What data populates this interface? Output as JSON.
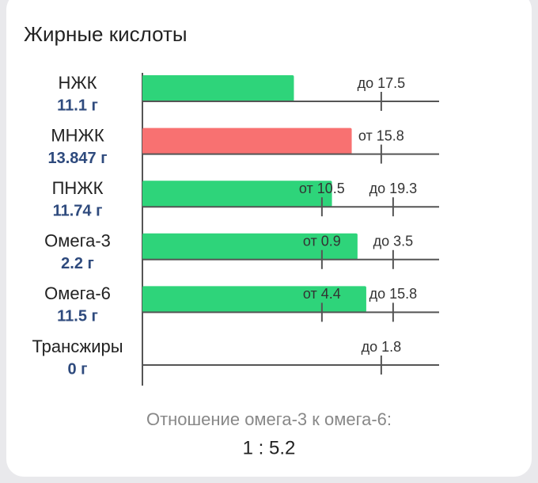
{
  "title": "Жирные кислоты",
  "rows": [
    {
      "name": "НЖК",
      "value": 11.1,
      "value_label": "11.1 г",
      "color": "#2ed47a",
      "limits": [
        {
          "value": 17.5,
          "label": "до 17.5"
        }
      ]
    },
    {
      "name": "МНЖК",
      "value": 13.847,
      "value_label": "13.847 г",
      "color": "#f87171",
      "limits": [
        {
          "value": 15.8,
          "label": "от 15.8"
        }
      ]
    },
    {
      "name": "ПНЖК",
      "value": 11.74,
      "value_label": "11.74 г",
      "color": "#2ed47a",
      "limits": [
        {
          "value": 10.5,
          "label": "от 10.5"
        },
        {
          "value": 19.3,
          "label": "до 19.3"
        }
      ]
    },
    {
      "name": "Омега-3",
      "value": 2.2,
      "value_label": "2.2 г",
      "color": "#2ed47a",
      "limits": [
        {
          "value": 0.9,
          "label": "от 0.9"
        },
        {
          "value": 3.5,
          "label": "до 3.5"
        }
      ]
    },
    {
      "name": "Омега-6",
      "value": 11.5,
      "value_label": "11.5 г",
      "color": "#2ed47a",
      "limits": [
        {
          "value": 4.4,
          "label": "от 4.4"
        },
        {
          "value": 15.8,
          "label": "до 15.8"
        }
      ]
    },
    {
      "name": "Трансжиры",
      "value": 0,
      "value_label": "0 г",
      "color": "#2ed47a",
      "limits": [
        {
          "value": 1.8,
          "label": "до 1.8"
        }
      ]
    }
  ],
  "ratio_label": "Отношение омега-3 к омега-6:",
  "ratio": "1 : 5.2"
}
